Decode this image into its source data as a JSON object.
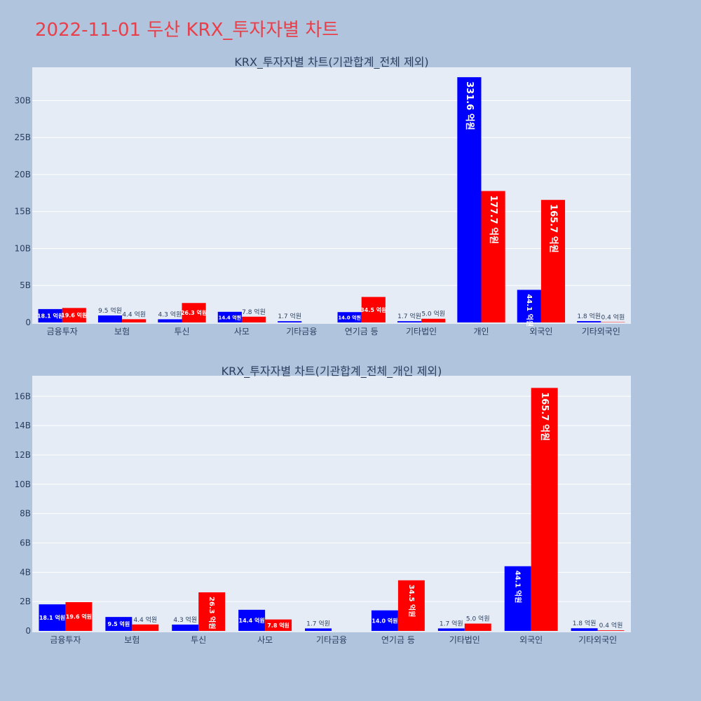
{
  "page_title": "2022-11-01 두산 KRX_투자자별 차트",
  "colors": {
    "background": "#b0c4de",
    "plot_bg": "#e5ecf6",
    "series_a": "#0000ff",
    "series_b": "#ff0000",
    "title": "#e8404a",
    "text": "#2a3f5f"
  },
  "chart_data": [
    {
      "type": "bar",
      "title": "KRX_투자자별 차트(기관합계_전체 제외)",
      "categories": [
        "금융투자",
        "보험",
        "투신",
        "사모",
        "기타금융",
        "연기금 등",
        "기타법인",
        "개인",
        "외국인",
        "기타외국인"
      ],
      "series": [
        {
          "color": "#0000ff",
          "values": [
            1.81,
            0.95,
            0.43,
            1.44,
            0.17,
            1.4,
            0.17,
            33.16,
            4.41,
            0.18
          ],
          "labels": [
            "18.1 억원",
            "9.5 억원",
            "4.3 억원",
            "14.4 억원",
            "1.7 억원",
            "14.0 억원",
            "1.7 억원",
            "331.6 억원",
            "44.1 억원",
            "1.8 억원"
          ]
        },
        {
          "color": "#ff0000",
          "values": [
            1.96,
            0.44,
            2.63,
            0.78,
            0,
            3.45,
            0.5,
            17.77,
            16.57,
            0.04
          ],
          "labels": [
            "19.6 억원",
            "4.4 억원",
            "26.3 억원",
            "7.8 억원",
            "",
            "34.5 억원",
            "5.0 억원",
            "177.7 억원",
            "165.7 억원",
            "0.4 억원"
          ]
        }
      ],
      "ylim": [
        0,
        34.5
      ],
      "yticks": [
        0,
        5,
        10,
        15,
        20,
        25,
        30
      ],
      "ytick_labels": [
        "0",
        "5B",
        "10B",
        "15B",
        "20B",
        "25B",
        "30B"
      ],
      "grid": true
    },
    {
      "type": "bar",
      "title": "KRX_투자자별 차트(기관합계_전체_개인 제외)",
      "categories": [
        "금융투자",
        "보험",
        "투신",
        "사모",
        "기타금융",
        "연기금 등",
        "기타법인",
        "외국인",
        "기타외국인"
      ],
      "series": [
        {
          "color": "#0000ff",
          "values": [
            1.81,
            0.95,
            0.43,
            1.44,
            0.17,
            1.4,
            0.17,
            4.41,
            0.18
          ],
          "labels": [
            "18.1 억원",
            "9.5 억원",
            "4.3 억원",
            "14.4 억원",
            "1.7 억원",
            "14.0 억원",
            "1.7 억원",
            "44.1 억원",
            "1.8 억원"
          ]
        },
        {
          "color": "#ff0000",
          "values": [
            1.96,
            0.44,
            2.63,
            0.78,
            0,
            3.45,
            0.5,
            16.57,
            0.04
          ],
          "labels": [
            "19.6 억원",
            "4.4 억원",
            "26.3 억원",
            "7.8 억원",
            "",
            "34.5 억원",
            "5.0 억원",
            "165.7 억원",
            "0.4 억원"
          ]
        }
      ],
      "ylim": [
        0,
        17.4
      ],
      "yticks": [
        0,
        2,
        4,
        6,
        8,
        10,
        12,
        14,
        16
      ],
      "ytick_labels": [
        "0",
        "2B",
        "4B",
        "6B",
        "8B",
        "10B",
        "12B",
        "14B",
        "16B"
      ],
      "grid": true
    }
  ]
}
